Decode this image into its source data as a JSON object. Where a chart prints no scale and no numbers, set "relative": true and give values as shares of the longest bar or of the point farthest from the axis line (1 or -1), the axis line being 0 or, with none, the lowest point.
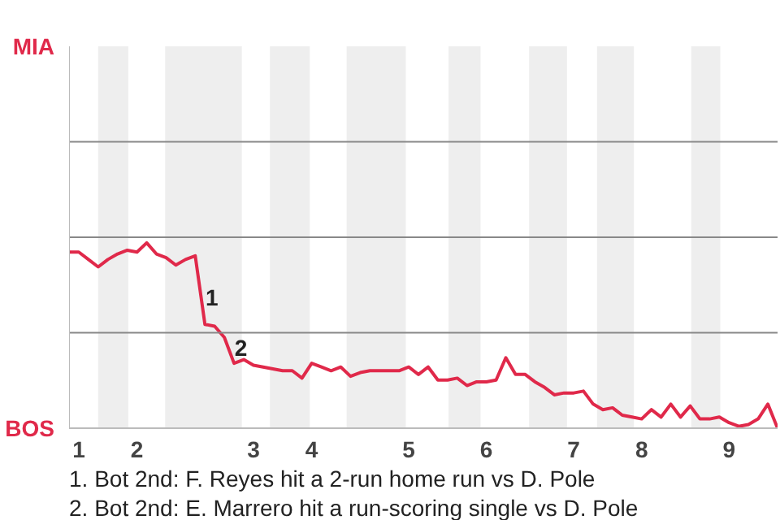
{
  "chart_data": {
    "type": "line",
    "relative": true,
    "categories": [
      null,
      "1",
      null,
      null,
      null,
      null,
      null,
      "2",
      null,
      null,
      null,
      null,
      null,
      null,
      null,
      null,
      null,
      null,
      null,
      "3",
      null,
      null,
      null,
      null,
      null,
      "4",
      null,
      null,
      null,
      null,
      null,
      null,
      null,
      null,
      null,
      "5",
      null,
      null,
      null,
      null,
      null,
      null,
      null,
      "6",
      null,
      null,
      null,
      null,
      null,
      null,
      null,
      null,
      "7",
      null,
      null,
      null,
      null,
      null,
      null,
      "8",
      null,
      null,
      null,
      null,
      null,
      null,
      null,
      null,
      "9",
      null,
      null,
      null,
      null,
      null
    ],
    "series": [
      {
        "color": "#e0294a",
        "values": [
          0.95,
          0.95,
          0.91,
          0.87,
          0.91,
          0.94,
          0.96,
          0.95,
          1,
          0.94,
          0.92,
          0.88,
          0.91,
          0.93,
          0.56,
          0.55,
          0.49,
          0.35,
          0.37,
          0.34,
          0.33,
          0.32,
          0.31,
          0.31,
          0.27,
          0.35,
          0.33,
          0.31,
          0.33,
          0.28,
          0.3,
          0.31,
          0.31,
          0.31,
          0.31,
          0.33,
          0.29,
          0.33,
          0.26,
          0.26,
          0.27,
          0.23,
          0.25,
          0.25,
          0.26,
          0.38,
          0.29,
          0.29,
          0.25,
          0.22,
          0.18,
          0.19,
          0.19,
          0.2,
          0.13,
          0.1,
          0.11,
          0.07,
          0.06,
          0.05,
          0.1,
          0.06,
          0.13,
          0.06,
          0.12,
          0.05,
          0.05,
          0.06,
          0.03,
          0.01,
          0.02,
          0.05,
          0.13,
          0
        ]
      }
    ],
    "line_style": "solid",
    "ref_lines": [
      {
        "axis": "y",
        "value": 0.515,
        "label": null,
        "color": "#888888"
      },
      {
        "axis": "y",
        "value": 1.03,
        "label": null,
        "color": "#888888"
      },
      {
        "axis": "y",
        "value": 1.545,
        "label": null,
        "color": "#888888"
      }
    ],
    "annotations": [
      "MIA",
      "BOS",
      {
        "text": "1",
        "y": 0.66
      },
      {
        "text": "2",
        "y": 0.39
      },
      "1. Bot 2nd: F. Reyes hit a 2-run home run vs D. Pole",
      "2. Bot 2nd: E. Marrero hit a run-scoring single vs D. Pole"
    ]
  }
}
